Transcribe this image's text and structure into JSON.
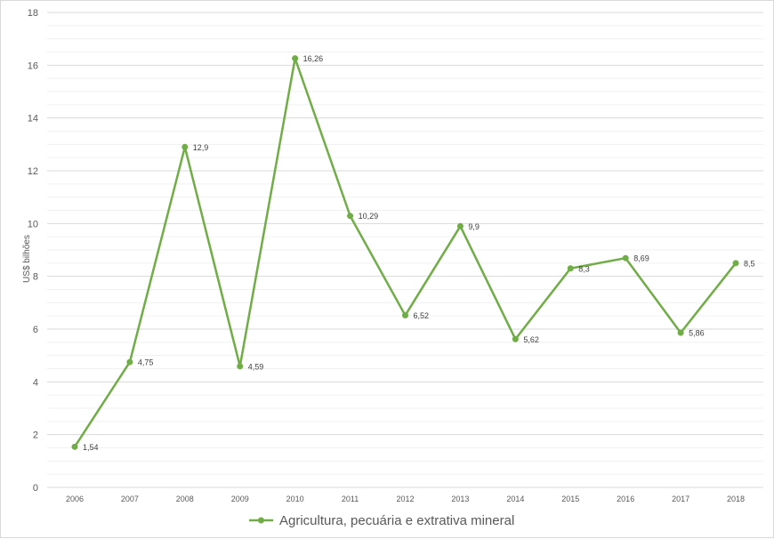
{
  "chart_data": {
    "type": "line",
    "title": "",
    "xlabel": "",
    "ylabel": "US$ bilhões",
    "categories": [
      "2006",
      "2007",
      "2008",
      "2009",
      "2010",
      "2011",
      "2012",
      "2013",
      "2014",
      "2015",
      "2016",
      "2017",
      "2018"
    ],
    "series": [
      {
        "name": "Agricultura, pecuária e extrativa mineral",
        "values": [
          1.54,
          4.75,
          12.9,
          4.59,
          16.26,
          10.29,
          6.52,
          9.9,
          5.62,
          8.3,
          8.69,
          5.86,
          8.5
        ],
        "labels": [
          "1,54",
          "4,75",
          "12,9",
          "4,59",
          "16,26",
          "10,29",
          "6,52",
          "9,9",
          "5,62",
          "8,3",
          "8,69",
          "5,86",
          "8,5"
        ],
        "color": "#70ad47"
      }
    ],
    "ylim": [
      0,
      18
    ],
    "yticks": [
      "0",
      "2",
      "4",
      "6",
      "8",
      "10",
      "12",
      "14",
      "16",
      "18"
    ],
    "grid": true,
    "legend": "bottom-center"
  }
}
